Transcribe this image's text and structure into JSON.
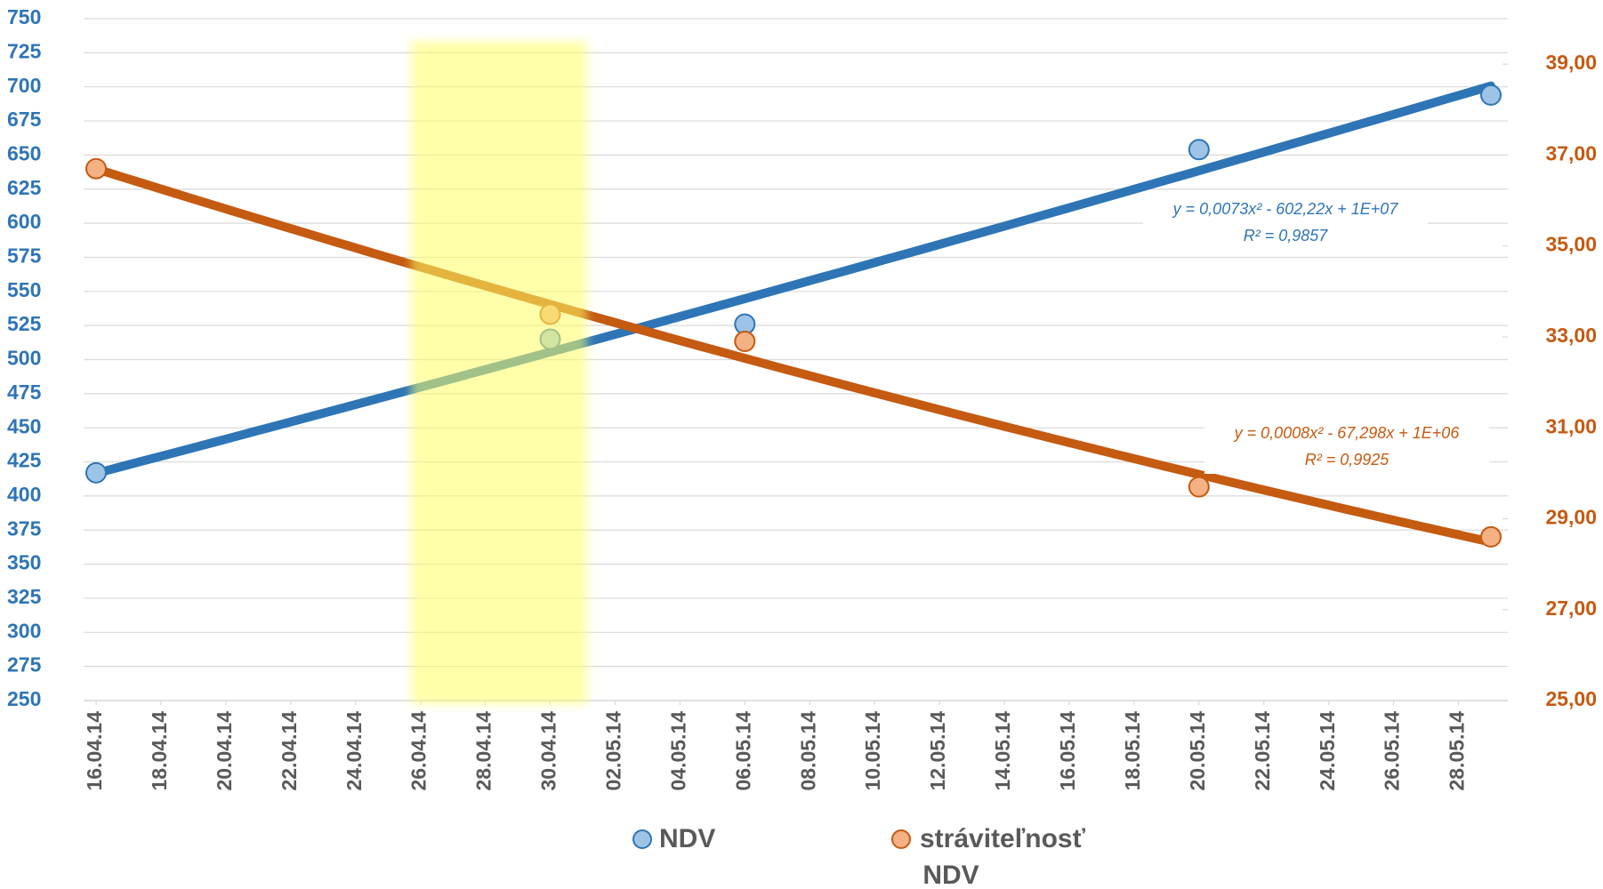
{
  "chart_data": {
    "type": "scatter",
    "title": "NDV",
    "x": [
      "2014-04-16",
      "2014-04-30",
      "2014-05-06",
      "2014-05-20",
      "2014-05-29"
    ],
    "xlim": [
      "2014-04-16",
      "2014-05-29"
    ],
    "xticks": [
      {
        "value": "2014-04-16",
        "label": "16.04.14"
      },
      {
        "value": "2014-04-18",
        "label": "18.04.14"
      },
      {
        "value": "2014-04-20",
        "label": "20.04.14"
      },
      {
        "value": "2014-04-22",
        "label": "22.04.14"
      },
      {
        "value": "2014-04-24",
        "label": "24.04.14"
      },
      {
        "value": "2014-04-26",
        "label": "26.04.14"
      },
      {
        "value": "2014-04-28",
        "label": "28.04.14"
      },
      {
        "value": "2014-04-30",
        "label": "30.04.14"
      },
      {
        "value": "2014-05-02",
        "label": "02.05.14"
      },
      {
        "value": "2014-05-04",
        "label": "04.05.14"
      },
      {
        "value": "2014-05-06",
        "label": "06.05.14"
      },
      {
        "value": "2014-05-08",
        "label": "08.05.14"
      },
      {
        "value": "2014-05-10",
        "label": "10.05.14"
      },
      {
        "value": "2014-05-12",
        "label": "12.05.14"
      },
      {
        "value": "2014-05-14",
        "label": "14.05.14"
      },
      {
        "value": "2014-05-16",
        "label": "16.05.14"
      },
      {
        "value": "2014-05-18",
        "label": "18.05.14"
      },
      {
        "value": "2014-05-20",
        "label": "20.05.14"
      },
      {
        "value": "2014-05-22",
        "label": "22.05.14"
      },
      {
        "value": "2014-05-24",
        "label": "24.05.14"
      },
      {
        "value": "2014-05-26",
        "label": "26.05.14"
      },
      {
        "value": "2014-05-28",
        "label": "28.05.14"
      }
    ],
    "ylim": [
      250,
      750
    ],
    "yticks": [
      250,
      275,
      300,
      325,
      350,
      375,
      400,
      425,
      450,
      475,
      500,
      525,
      550,
      575,
      600,
      625,
      650,
      675,
      700,
      725,
      750
    ],
    "y2lim": [
      25,
      40
    ],
    "y2ticks": [
      {
        "value": 25,
        "label": "25,00"
      },
      {
        "value": 27,
        "label": "27,00"
      },
      {
        "value": 29,
        "label": "29,00"
      },
      {
        "value": 31,
        "label": "31,00"
      },
      {
        "value": 33,
        "label": "33,00"
      },
      {
        "value": 35,
        "label": "35,00"
      },
      {
        "value": 37,
        "label": "37,00"
      },
      {
        "value": 39,
        "label": "39,00"
      }
    ],
    "grid": true,
    "legend": "bottom",
    "series": [
      {
        "name": "NDV",
        "color": "#2e75b6",
        "fill": "#9dc3e6",
        "axis": "y",
        "values": [
          417,
          515,
          526,
          654,
          694
        ]
      },
      {
        "name": "stráviteľnosť",
        "color": "#c55a11",
        "fill": "#f4b183",
        "axis": "y2",
        "values": [
          36.7,
          33.5,
          32.9,
          29.7,
          28.6
        ]
      }
    ],
    "annotations": [
      {
        "color": "#2e75b6",
        "lines": [
          "y = 0,0073x² - 602,22x + 1E+07",
          "R² = 0,9857"
        ]
      },
      {
        "color": "#c55a11",
        "lines": [
          "y = 0,0008x² - 67,298x + 1E+06",
          "R² = 0,9925"
        ]
      }
    ]
  }
}
